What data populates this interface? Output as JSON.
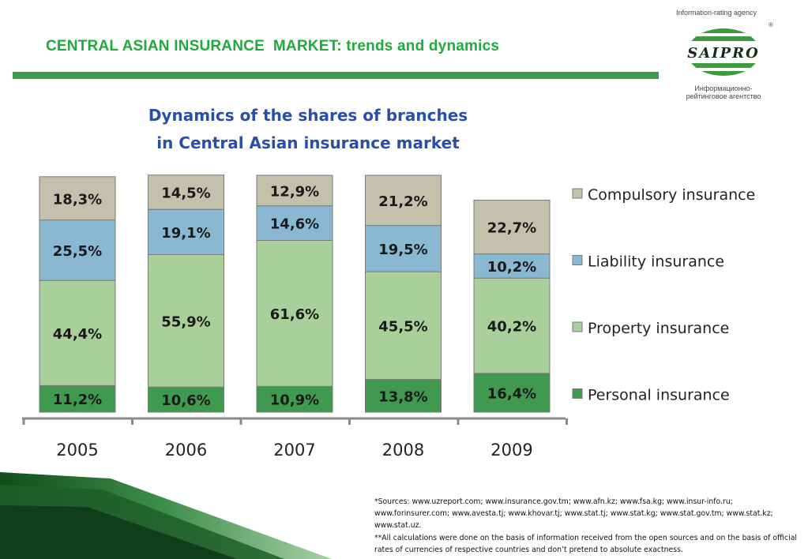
{
  "header": {
    "title": "CENTRAL ASIAN INSURANCE  MARKET: trends and dynamics"
  },
  "logo": {
    "tagline": "Information-rating agency",
    "brand": "SAIPRO",
    "reg_mark": "®",
    "ru_line1": "Информационно-",
    "ru_line2": "рейтинговое агентство"
  },
  "chart_data": {
    "type": "bar",
    "stacked": true,
    "title_line1": "Dynamics of the shares of branches",
    "title_line2": "in Central Asian insurance market",
    "categories": [
      "2005",
      "2006",
      "2007",
      "2008",
      "2009"
    ],
    "series": [
      {
        "name": "Personal insurance",
        "color": "#3f9a4f",
        "values": [
          11.2,
          10.6,
          10.9,
          13.8,
          16.4
        ],
        "labels": [
          "11,2%",
          "10,6%",
          "10,9%",
          "13,8%",
          "16,4%"
        ]
      },
      {
        "name": "Property insurance",
        "color": "#a9cf9a",
        "values": [
          44.4,
          55.9,
          61.6,
          45.5,
          40.2
        ],
        "labels": [
          "44,4%",
          "55,9%",
          "61,6%",
          "45,5%",
          "40,2%"
        ]
      },
      {
        "name": "Liability insurance",
        "color": "#8ab8d2",
        "values": [
          25.5,
          19.1,
          14.6,
          19.5,
          10.2
        ],
        "labels": [
          "25,5%",
          "19,1%",
          "14,6%",
          "19,5%",
          "10,2%"
        ]
      },
      {
        "name": "Compulsory insurance",
        "color": "#c3c0ab",
        "values": [
          18.3,
          14.5,
          12.9,
          21.2,
          22.7
        ],
        "labels": [
          "18,3%",
          "14,5%",
          "12,9%",
          "21,2%",
          "22,7%"
        ]
      }
    ],
    "legend_order": [
      "Compulsory insurance",
      "Liability insurance",
      "Property insurance",
      "Personal insurance"
    ],
    "legend_position": "right",
    "grid": false
  },
  "footnotes": {
    "sources": "*Sources: www.uzreport.com; www.insurance.gov.tm; www.afn.kz; www.fsa.kg; www.insur-info.ru; www.forinsurer.com; www.avesta.tj; www.khovar.tj; www.stat.tj; www.stat.kg; www.stat.gov.tm; www.stat.kz; www.stat.uz.",
    "note": "**All calculations were done on the basis of information received from the open sources and on the basis of official rates of currencies of respective countries and don’t pretend to absolute exactness."
  }
}
